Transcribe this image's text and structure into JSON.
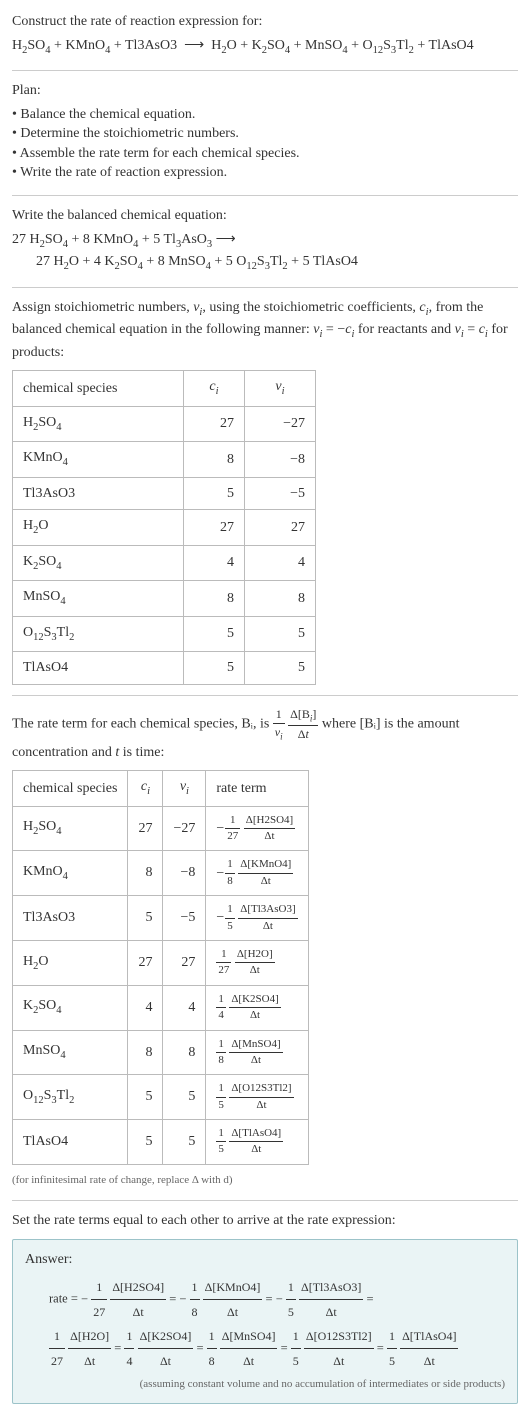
{
  "header": {
    "construct_line": "Construct the rate of reaction expression for:",
    "equation_lhs": "H₂SO₄ + KMnO₄ + Tl3AsO3",
    "equation_arrow": "⟶",
    "equation_rhs": "H₂O + K₂SO₄ + MnSO₄ + O₁₂S₃Tl₂ + TlAsO4"
  },
  "plan": {
    "title": "Plan:",
    "items": [
      "Balance the chemical equation.",
      "Determine the stoichiometric numbers.",
      "Assemble the rate term for each chemical species.",
      "Write the rate of reaction expression."
    ]
  },
  "balanced": {
    "title": "Write the balanced chemical equation:",
    "line1": "27 H₂SO₄ + 8 KMnO₄ + 5 Tl₃AsO₃ ⟶",
    "line2": "27 H₂O + 4 K₂SO₄ + 8 MnSO₄ + 5 O₁₂S₃Tl₂ + 5 TlAsO4"
  },
  "assign_text": {
    "part1": "Assign stoichiometric numbers, νᵢ, using the stoichiometric coefficients, cᵢ, from the balanced chemical equation in the following manner: νᵢ = −cᵢ for reactants and νᵢ = cᵢ for products:"
  },
  "table1": {
    "headers": [
      "chemical species",
      "cᵢ",
      "νᵢ"
    ],
    "col_widths": [
      "150px",
      "40px",
      "50px"
    ],
    "rows": [
      {
        "species": "H₂SO₄",
        "c": "27",
        "v": "−27"
      },
      {
        "species": "KMnO₄",
        "c": "8",
        "v": "−8"
      },
      {
        "species": "Tl3AsO3",
        "c": "5",
        "v": "−5"
      },
      {
        "species": "H₂O",
        "c": "27",
        "v": "27"
      },
      {
        "species": "K₂SO₄",
        "c": "4",
        "v": "4"
      },
      {
        "species": "MnSO₄",
        "c": "8",
        "v": "8"
      },
      {
        "species": "O₁₂S₃Tl₂",
        "c": "5",
        "v": "5"
      },
      {
        "species": "TlAsO4",
        "c": "5",
        "v": "5"
      }
    ]
  },
  "rate_term_text": {
    "part1": "The rate term for each chemical species, Bᵢ, is ",
    "part2": " where [Bᵢ] is the amount concentration and ",
    "part3": " is time:",
    "t_var": "t"
  },
  "table2": {
    "headers": [
      "chemical species",
      "cᵢ",
      "νᵢ",
      "rate term"
    ],
    "rows": [
      {
        "species": "H₂SO₄",
        "c": "27",
        "v": "−27",
        "sign": "−",
        "fnum": "1",
        "fden": "27",
        "dnum": "Δ[H2SO4]",
        "dden": "Δt"
      },
      {
        "species": "KMnO₄",
        "c": "8",
        "v": "−8",
        "sign": "−",
        "fnum": "1",
        "fden": "8",
        "dnum": "Δ[KMnO4]",
        "dden": "Δt"
      },
      {
        "species": "Tl3AsO3",
        "c": "5",
        "v": "−5",
        "sign": "−",
        "fnum": "1",
        "fden": "5",
        "dnum": "Δ[Tl3AsO3]",
        "dden": "Δt"
      },
      {
        "species": "H₂O",
        "c": "27",
        "v": "27",
        "sign": "",
        "fnum": "1",
        "fden": "27",
        "dnum": "Δ[H2O]",
        "dden": "Δt"
      },
      {
        "species": "K₂SO₄",
        "c": "4",
        "v": "4",
        "sign": "",
        "fnum": "1",
        "fden": "4",
        "dnum": "Δ[K2SO4]",
        "dden": "Δt"
      },
      {
        "species": "MnSO₄",
        "c": "8",
        "v": "8",
        "sign": "",
        "fnum": "1",
        "fden": "8",
        "dnum": "Δ[MnSO4]",
        "dden": "Δt"
      },
      {
        "species": "O₁₂S₃Tl₂",
        "c": "5",
        "v": "5",
        "sign": "",
        "fnum": "1",
        "fden": "5",
        "dnum": "Δ[O12S3Tl2]",
        "dden": "Δt"
      },
      {
        "species": "TlAsO4",
        "c": "5",
        "v": "5",
        "sign": "",
        "fnum": "1",
        "fden": "5",
        "dnum": "Δ[TlAsO4]",
        "dden": "Δt"
      }
    ]
  },
  "infinitesimal_note": "(for infinitesimal rate of change, replace Δ with d)",
  "set_equal_text": "Set the rate terms equal to each other to arrive at the rate expression:",
  "answer": {
    "label": "Answer:",
    "rate_prefix": "rate = ",
    "terms": [
      {
        "sign": "−",
        "fnum": "1",
        "fden": "27",
        "dnum": "Δ[H2SO4]",
        "dden": "Δt",
        "eq_after": " = "
      },
      {
        "sign": "−",
        "fnum": "1",
        "fden": "8",
        "dnum": "Δ[KMnO4]",
        "dden": "Δt",
        "eq_after": " = "
      },
      {
        "sign": "−",
        "fnum": "1",
        "fden": "5",
        "dnum": "Δ[Tl3AsO3]",
        "dden": "Δt",
        "eq_after": " = "
      },
      {
        "sign": "",
        "fnum": "1",
        "fden": "27",
        "dnum": "Δ[H2O]",
        "dden": "Δt",
        "eq_after": " = "
      },
      {
        "sign": "",
        "fnum": "1",
        "fden": "4",
        "dnum": "Δ[K2SO4]",
        "dden": "Δt",
        "eq_after": " = "
      },
      {
        "sign": "",
        "fnum": "1",
        "fden": "8",
        "dnum": "Δ[MnSO4]",
        "dden": "Δt",
        "eq_after": " = "
      },
      {
        "sign": "",
        "fnum": "1",
        "fden": "5",
        "dnum": "Δ[O12S3Tl2]",
        "dden": "Δt",
        "eq_after": " = "
      },
      {
        "sign": "",
        "fnum": "1",
        "fden": "5",
        "dnum": "Δ[TlAsO4]",
        "dden": "Δt",
        "eq_after": ""
      }
    ],
    "assumption": "(assuming constant volume and no accumulation of intermediates or side products)"
  },
  "colors": {
    "text": "#333333",
    "rule": "#cccccc",
    "table_border": "#bbbbbb",
    "answer_bg": "#eaf4f5",
    "answer_border": "#9cc3c9",
    "note": "#666666"
  }
}
